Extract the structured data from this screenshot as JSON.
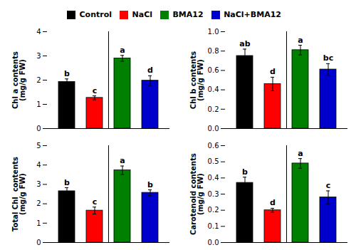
{
  "chart_data": [
    {
      "type": "bar",
      "ylabel": "Chl a contents\n(mg/g FW)",
      "categories": [
        "Control",
        "NaCl",
        "BMA12",
        "NaCl+BMA12"
      ],
      "colors": [
        "#000000",
        "#ff0000",
        "#008000",
        "#0000cc"
      ],
      "values": [
        1.93,
        1.27,
        2.9,
        1.98
      ],
      "errors": [
        0.12,
        0.08,
        0.12,
        0.2
      ],
      "annotations": [
        "b",
        "c",
        "a",
        "d"
      ],
      "ylim": [
        0,
        4
      ],
      "yticks": [
        0,
        1,
        2,
        3,
        4
      ],
      "tick_labels": "y",
      "legend": "top"
    },
    {
      "type": "bar",
      "ylabel": "Chl b contents\n(mg/g FW)",
      "categories": [
        "Control",
        "NaCl",
        "BMA12",
        "NaCl+BMA12"
      ],
      "colors": [
        "#000000",
        "#ff0000",
        "#008000",
        "#0000cc"
      ],
      "values": [
        0.75,
        0.46,
        0.81,
        0.61
      ],
      "errors": [
        0.07,
        0.07,
        0.05,
        0.06
      ],
      "annotations": [
        "ab",
        "d",
        "a",
        "bc"
      ],
      "ylim": [
        0,
        1.0
      ],
      "yticks": [
        {
          "value": 0.0,
          "label": "0.0"
        },
        0.2,
        0.4,
        0.6,
        0.8,
        {
          "value": 1.0,
          "label": "1.0"
        }
      ],
      "tick_labels": "y",
      "legend": "top"
    },
    {
      "type": "bar",
      "ylabel": "Total Chl  contents\n(mg/g FW)",
      "categories": [
        "Control",
        "NaCl",
        "BMA12",
        "NaCl+BMA12"
      ],
      "colors": [
        "#000000",
        "#ff0000",
        "#008000",
        "#0000cc"
      ],
      "values": [
        2.65,
        1.65,
        3.73,
        2.57
      ],
      "errors": [
        0.18,
        0.18,
        0.22,
        0.15
      ],
      "annotations": [
        "b",
        "c",
        "a",
        "b"
      ],
      "ylim": [
        0,
        5
      ],
      "yticks": [
        0,
        1,
        2,
        3,
        4,
        5
      ],
      "tick_labels": "y",
      "legend": "top"
    },
    {
      "type": "bar",
      "ylabel": "Carotenoid contents\n(mg/g FW)",
      "categories": [
        "Control",
        "NaCl",
        "BMA12",
        "NaCl+BMA12"
      ],
      "colors": [
        "#000000",
        "#ff0000",
        "#008000",
        "#0000cc"
      ],
      "values": [
        0.37,
        0.2,
        0.49,
        0.28
      ],
      "errors": [
        0.035,
        0.012,
        0.03,
        0.04
      ],
      "annotations": [
        "b",
        "d",
        "a",
        "c"
      ],
      "ylim": [
        0,
        0.6
      ],
      "yticks": [
        {
          "value": 0.0,
          "label": "0.0"
        },
        0.1,
        0.2,
        0.3,
        0.4,
        0.5,
        {
          "value": 0.6,
          "label": "0.6"
        }
      ],
      "tick_labels": "y",
      "legend": "top"
    }
  ]
}
